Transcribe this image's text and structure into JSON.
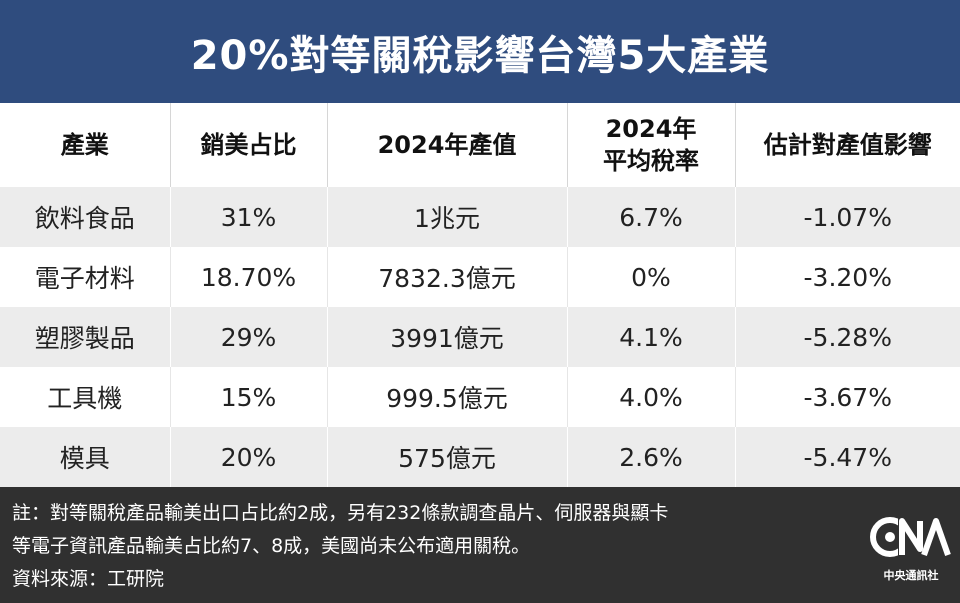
{
  "header": {
    "title": "20%對等關稅影響台灣5大產業"
  },
  "table": {
    "columns": [
      "產業",
      "銷美占比",
      "2024年產值",
      "2024年\n平均稅率",
      "估計對產值影響"
    ],
    "rows": [
      [
        "飲料食品",
        "31%",
        "1兆元",
        "6.7%",
        "-1.07%"
      ],
      [
        "電子材料",
        "18.70%",
        "7832.3億元",
        "0%",
        "-3.20%"
      ],
      [
        "塑膠製品",
        "29%",
        "3991億元",
        "4.1%",
        "-5.28%"
      ],
      [
        "工具機",
        "15%",
        "999.5億元",
        "4.0%",
        "-3.67%"
      ],
      [
        "模具",
        "20%",
        "575億元",
        "2.6%",
        "-5.47%"
      ]
    ]
  },
  "footer": {
    "note_line1": "註：對等關稅產品輸美出口占比約2成，另有232條款調查晶片、伺服器與顯卡",
    "note_line2": "等電子資訊產品輸美占比約7、8成，美國尚未公布適用關稅。",
    "source": "資料來源：工研院",
    "logo_text": "中央通訊社"
  },
  "colors": {
    "header_bg": "#2f4c7e",
    "footer_bg": "#303030",
    "row_stripe": "#ececec"
  }
}
